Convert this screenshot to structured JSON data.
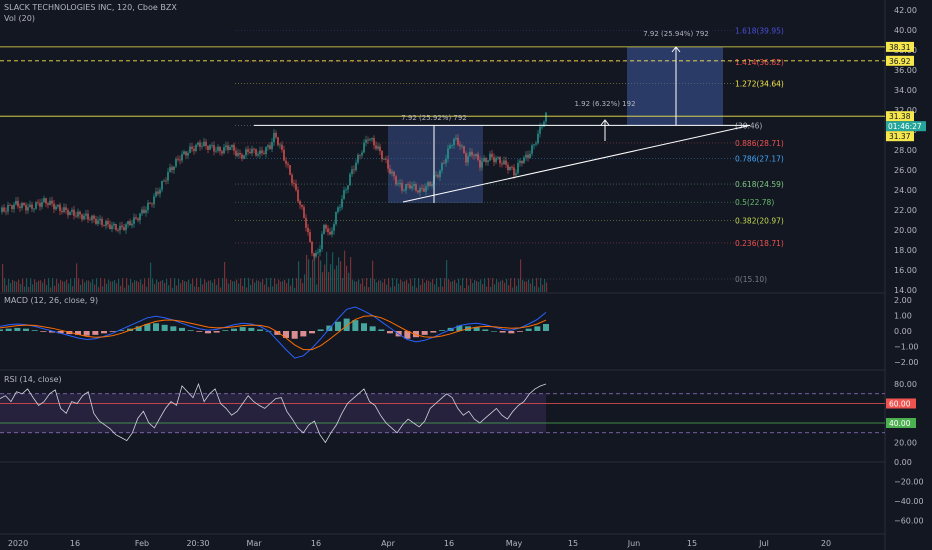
{
  "header": {
    "symbol_line": "SLACK TECHNOLOGIES INC, 120, Cboe BZX",
    "vol_line": "Vol (20)",
    "macd_label": "MACD (12, 26, close, 9)",
    "rsi_label": "RSI (14, close)"
  },
  "colors": {
    "background": "#131722",
    "up": "#26a69a",
    "down": "#ef5350",
    "yellow": "#f5e74c",
    "macd_line": "#2962ff",
    "signal_line": "#ff6d00",
    "rsi_line": "#d1d4dc",
    "rsi_band": "#7e57c2",
    "range_box": "#3d5a9e"
  },
  "chart_data": [
    {
      "type": "candlestick",
      "title": "SLACK TECHNOLOGIES INC, 120, Cboe BZX",
      "x_tick_labels": [
        "2020",
        "16",
        "Feb",
        "20:30",
        "Mar",
        "16",
        "Apr",
        "16",
        "May",
        "15",
        "Jun",
        "15",
        "Jul",
        "20"
      ],
      "y_tick_labels": [
        "14.00",
        "16.00",
        "18.00",
        "20.00",
        "22.00",
        "24.00",
        "26.00",
        "28.00",
        "30.00",
        "32.00",
        "34.00",
        "36.00",
        "38.00",
        "40.00",
        "42.00"
      ],
      "ylim": [
        13.4,
        43.5
      ],
      "grid": false,
      "close_path": [
        [
          0,
          21.8
        ],
        [
          15,
          22.6
        ],
        [
          30,
          22.2
        ],
        [
          45,
          22.9
        ],
        [
          60,
          22.1
        ],
        [
          75,
          21.6
        ],
        [
          90,
          21.2
        ],
        [
          105,
          20.6
        ],
        [
          120,
          20.1
        ],
        [
          135,
          21.0
        ],
        [
          150,
          22.6
        ],
        [
          160,
          24.2
        ],
        [
          170,
          26.0
        ],
        [
          180,
          27.3
        ],
        [
          190,
          28.0
        ],
        [
          200,
          28.6
        ],
        [
          210,
          28.3
        ],
        [
          220,
          27.9
        ],
        [
          230,
          28.4
        ],
        [
          240,
          27.3
        ],
        [
          250,
          28.0
        ],
        [
          260,
          27.6
        ],
        [
          270,
          28.4
        ],
        [
          275,
          29.6
        ],
        [
          282,
          27.8
        ],
        [
          290,
          25.6
        ],
        [
          298,
          23.2
        ],
        [
          305,
          21.0
        ],
        [
          310,
          18.6
        ],
        [
          315,
          17.1
        ],
        [
          320,
          18.4
        ],
        [
          325,
          20.8
        ],
        [
          330,
          19.2
        ],
        [
          335,
          21.3
        ],
        [
          340,
          22.6
        ],
        [
          345,
          23.9
        ],
        [
          352,
          25.9
        ],
        [
          360,
          27.6
        ],
        [
          368,
          29.3
        ],
        [
          376,
          28.4
        ],
        [
          384,
          27.1
        ],
        [
          390,
          25.9
        ],
        [
          396,
          24.9
        ],
        [
          402,
          24.1
        ],
        [
          410,
          24.5
        ],
        [
          420,
          23.9
        ],
        [
          430,
          24.6
        ],
        [
          440,
          25.9
        ],
        [
          447,
          27.6
        ],
        [
          453,
          29.1
        ],
        [
          460,
          28.6
        ],
        [
          466,
          27.1
        ],
        [
          473,
          27.8
        ],
        [
          480,
          26.6
        ],
        [
          490,
          27.3
        ],
        [
          500,
          26.9
        ],
        [
          510,
          26.2
        ],
        [
          515,
          25.6
        ],
        [
          520,
          26.9
        ],
        [
          527,
          27.3
        ],
        [
          533,
          28.3
        ],
        [
          538,
          29.5
        ],
        [
          542,
          30.6
        ],
        [
          546,
          31.4
        ]
      ],
      "last_price": "31.37",
      "last_price_time": "01:46:27",
      "price_levels": [
        {
          "price": 38.31,
          "label": "38.31",
          "style": "solid"
        },
        {
          "price": 36.92,
          "label": "36.92",
          "style": "dashed"
        },
        {
          "price": 31.38,
          "label": "31.38",
          "style": "solid"
        }
      ],
      "fibonacci": [
        {
          "level": "1.618(39.95)",
          "price": 39.95,
          "color": "#4a4fd8"
        },
        {
          "level": "1.414(36.82)",
          "price": 36.82,
          "color": "#ef5350"
        },
        {
          "level": "1.272(34.64)",
          "price": 34.64,
          "color": "#f5e74c"
        },
        {
          "level": "(30.46)",
          "price": 30.46,
          "color": "#b2b5be"
        },
        {
          "level": "0.886(28.71)",
          "price": 28.71,
          "color": "#ef5350"
        },
        {
          "level": "0.786(27.17)",
          "price": 27.17,
          "color": "#42a5f5"
        },
        {
          "level": "0.618(24.59)",
          "price": 24.59,
          "color": "#81c784"
        },
        {
          "level": "0.5(22.78)",
          "price": 22.78,
          "color": "#66bb6a"
        },
        {
          "level": "0.382(20.97)",
          "price": 20.97,
          "color": "#c5d84e"
        },
        {
          "level": "0.236(18.71)",
          "price": 18.71,
          "color": "#ef5350"
        },
        {
          "level": "0(15.10)",
          "price": 15.1,
          "color": "#787b86"
        }
      ],
      "annotations": [
        {
          "text": "7.92 (25.92%) 792",
          "kind": "range-measure"
        },
        {
          "text": "1.92 (6.32%) 192",
          "kind": "arrow-measure"
        },
        {
          "text": "7.92 (25.94%) 792",
          "kind": "target-measure"
        }
      ]
    },
    {
      "type": "line",
      "title": "MACD (12, 26, close, 9)",
      "y_tick_labels": [
        "2.00",
        "1.00",
        "0.00",
        "−1.00",
        "−2.00"
      ],
      "ylim": [
        -2.6,
        2.4
      ],
      "histogram": [
        0.1,
        0.15,
        0.2,
        0.15,
        0.05,
        -0.05,
        -0.1,
        -0.15,
        -0.2,
        -0.25,
        -0.3,
        -0.25,
        -0.15,
        -0.05,
        0.05,
        0.15,
        0.3,
        0.45,
        0.5,
        0.4,
        0.3,
        0.2,
        0.05,
        -0.05,
        -0.15,
        -0.1,
        0.05,
        0.15,
        0.25,
        0.2,
        0.1,
        0.0,
        -0.25,
        -0.45,
        -0.5,
        -0.35,
        -0.15,
        0.1,
        0.35,
        0.6,
        0.8,
        0.7,
        0.5,
        0.3,
        0.1,
        -0.15,
        -0.35,
        -0.5,
        -0.4,
        -0.25,
        -0.1,
        0.05,
        0.2,
        0.35,
        0.3,
        0.25,
        0.1,
        0.0,
        -0.1,
        -0.15,
        -0.05,
        0.15,
        0.3,
        0.45
      ],
      "macd": [
        0.3,
        0.4,
        0.45,
        0.4,
        0.3,
        0.15,
        0.0,
        -0.15,
        -0.3,
        -0.45,
        -0.55,
        -0.5,
        -0.35,
        -0.15,
        0.1,
        0.35,
        0.6,
        0.85,
        0.95,
        0.85,
        0.7,
        0.5,
        0.3,
        0.15,
        0.05,
        0.1,
        0.25,
        0.4,
        0.5,
        0.45,
        0.3,
        0.0,
        -0.6,
        -1.2,
        -1.75,
        -1.6,
        -1.1,
        -0.5,
        0.15,
        0.8,
        1.4,
        1.55,
        1.3,
        1.0,
        0.6,
        0.2,
        -0.2,
        -0.55,
        -0.7,
        -0.6,
        -0.4,
        -0.15,
        0.1,
        0.35,
        0.45,
        0.5,
        0.4,
        0.25,
        0.1,
        0.05,
        0.2,
        0.45,
        0.75,
        1.2
      ],
      "signal": [
        0.2,
        0.28,
        0.35,
        0.38,
        0.36,
        0.28,
        0.18,
        0.05,
        -0.08,
        -0.22,
        -0.35,
        -0.4,
        -0.38,
        -0.3,
        -0.15,
        0.05,
        0.25,
        0.45,
        0.62,
        0.7,
        0.7,
        0.62,
        0.5,
        0.38,
        0.25,
        0.2,
        0.22,
        0.28,
        0.35,
        0.38,
        0.36,
        0.25,
        -0.05,
        -0.45,
        -0.9,
        -1.2,
        -1.2,
        -0.95,
        -0.55,
        -0.1,
        0.35,
        0.75,
        0.95,
        0.98,
        0.85,
        0.6,
        0.3,
        0.0,
        -0.25,
        -0.38,
        -0.4,
        -0.32,
        -0.18,
        0.0,
        0.15,
        0.25,
        0.3,
        0.28,
        0.22,
        0.18,
        0.2,
        0.3,
        0.45,
        0.7
      ]
    },
    {
      "type": "line",
      "title": "RSI (14, close)",
      "y_tick_labels": [
        "80.00",
        "60.00",
        "40.00",
        "20.00",
        "0.00",
        "−20.00",
        "−40.00",
        "−60.00"
      ],
      "ylim": [
        -66,
        93
      ],
      "band": [
        30,
        70
      ],
      "levels": [
        {
          "value": 60,
          "label": "60.00",
          "color": "#ef5350"
        },
        {
          "value": 40,
          "label": "40.00",
          "color": "#4caf50"
        }
      ],
      "values": [
        65,
        68,
        62,
        72,
        70,
        75,
        66,
        58,
        62,
        70,
        74,
        55,
        50,
        62,
        60,
        68,
        72,
        50,
        42,
        38,
        34,
        28,
        25,
        22,
        30,
        45,
        52,
        40,
        35,
        45,
        55,
        62,
        58,
        78,
        72,
        66,
        80,
        62,
        70,
        75,
        60,
        55,
        48,
        52,
        60,
        68,
        62,
        58,
        55,
        60,
        65,
        66,
        52,
        44,
        35,
        30,
        38,
        42,
        28,
        20,
        30,
        38,
        50,
        60,
        65,
        70,
        75,
        62,
        58,
        48,
        40,
        35,
        30,
        38,
        44,
        40,
        36,
        42,
        55,
        60,
        65,
        70,
        66,
        55,
        48,
        52,
        44,
        40,
        45,
        50,
        55,
        48,
        44,
        52,
        58,
        62,
        70,
        75,
        78,
        80
      ]
    }
  ]
}
